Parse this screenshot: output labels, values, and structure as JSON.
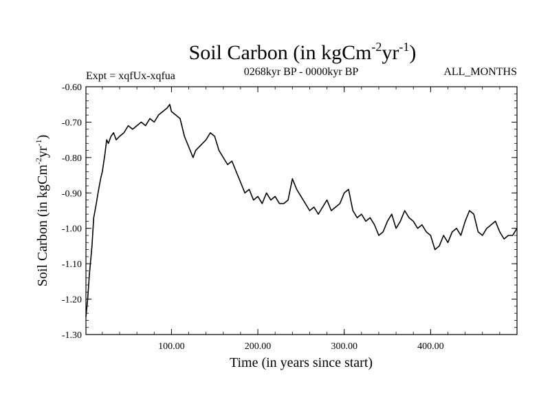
{
  "chart_data": {
    "type": "line",
    "title": "Soil Carbon (in kgCm",
    "title_sup1": "-2",
    "title_mid": "yr",
    "title_sup2": "-1",
    "title_end": ")",
    "experiment": "Expt = xqfUx-xqfua",
    "period": "0268kyr BP - 0000kyr BP",
    "months": "ALL_MONTHS",
    "xlabel": "Time (in years since start)",
    "ylabel": "Soil Carbon (in kgCm",
    "ylabel_sup1": "-2",
    "ylabel_mid": "yr",
    "ylabel_sup2": "-1",
    "ylabel_end": ")",
    "xlim": [
      1,
      500
    ],
    "ylim": [
      -1.3,
      -0.6
    ],
    "x_ticks": [
      100,
      200,
      300,
      400
    ],
    "x_tick_labels": [
      "100.00",
      "200.00",
      "300.00",
      "400.00"
    ],
    "y_ticks": [
      -0.6,
      -0.7,
      -0.8,
      -0.9,
      -1.0,
      -1.1,
      -1.2,
      -1.3
    ],
    "y_tick_labels": [
      "-0.60",
      "-0.70",
      "-0.80",
      "-0.90",
      "-1.00",
      "-1.10",
      "-1.20",
      "-1.30"
    ],
    "series": [
      {
        "name": "Soil Carbon",
        "color": "#000000",
        "x": [
          1,
          3,
          5,
          8,
          10,
          13,
          15,
          18,
          20,
          23,
          25,
          27,
          30,
          33,
          36,
          40,
          45,
          50,
          55,
          60,
          65,
          70,
          75,
          80,
          85,
          90,
          95,
          98,
          100,
          105,
          110,
          115,
          120,
          125,
          128,
          132,
          136,
          140,
          145,
          150,
          155,
          160,
          165,
          170,
          175,
          180,
          185,
          190,
          195,
          200,
          205,
          210,
          215,
          220,
          225,
          230,
          235,
          240,
          245,
          250,
          255,
          260,
          265,
          270,
          275,
          280,
          285,
          290,
          295,
          300,
          305,
          310,
          315,
          320,
          325,
          330,
          335,
          340,
          345,
          350,
          355,
          360,
          365,
          370,
          375,
          380,
          385,
          390,
          395,
          400,
          405,
          410,
          415,
          420,
          425,
          430,
          435,
          440,
          445,
          450,
          455,
          460,
          465,
          470,
          475,
          480,
          485,
          490,
          495,
          500
        ],
        "y": [
          -1.25,
          -1.2,
          -1.13,
          -1.05,
          -0.97,
          -0.93,
          -0.9,
          -0.86,
          -0.84,
          -0.79,
          -0.75,
          -0.76,
          -0.74,
          -0.73,
          -0.75,
          -0.74,
          -0.73,
          -0.71,
          -0.72,
          -0.71,
          -0.7,
          -0.71,
          -0.69,
          -0.7,
          -0.68,
          -0.67,
          -0.66,
          -0.65,
          -0.67,
          -0.68,
          -0.69,
          -0.74,
          -0.77,
          -0.8,
          -0.78,
          -0.77,
          -0.76,
          -0.75,
          -0.73,
          -0.74,
          -0.78,
          -0.8,
          -0.82,
          -0.81,
          -0.84,
          -0.87,
          -0.9,
          -0.89,
          -0.92,
          -0.91,
          -0.93,
          -0.9,
          -0.92,
          -0.91,
          -0.93,
          -0.93,
          -0.92,
          -0.86,
          -0.89,
          -0.91,
          -0.93,
          -0.95,
          -0.94,
          -0.96,
          -0.94,
          -0.92,
          -0.95,
          -0.94,
          -0.93,
          -0.9,
          -0.89,
          -0.95,
          -0.97,
          -0.96,
          -0.98,
          -0.97,
          -0.99,
          -1.02,
          -1.01,
          -0.98,
          -0.96,
          -1.0,
          -0.98,
          -0.95,
          -0.97,
          -0.98,
          -1.0,
          -0.99,
          -1.01,
          -1.02,
          -1.06,
          -1.05,
          -1.02,
          -1.04,
          -1.01,
          -1.0,
          -1.02,
          -0.98,
          -0.95,
          -0.96,
          -1.01,
          -1.02,
          -1.0,
          -0.99,
          -0.98,
          -1.01,
          -1.03,
          -1.02,
          -1.02,
          -1.0
        ]
      }
    ]
  }
}
